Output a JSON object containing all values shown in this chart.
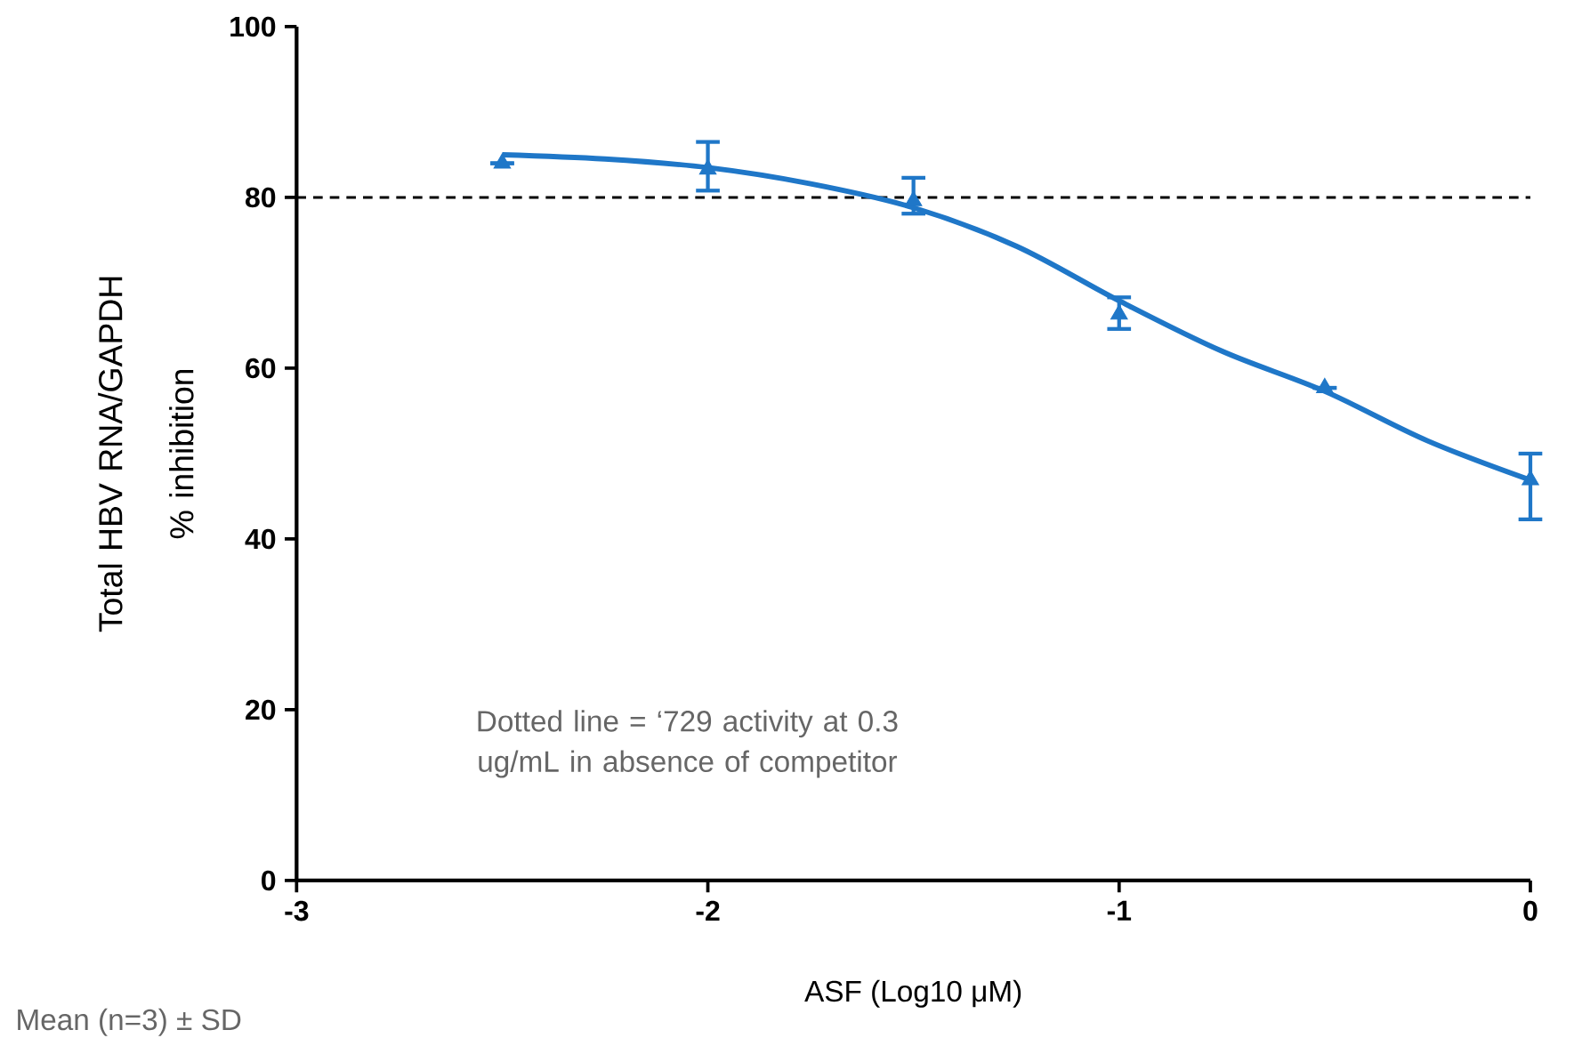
{
  "chart_data": {
    "type": "scatter",
    "xlabel": "ASF (Log10 μM)",
    "ylabel": "Total HBV RNA/GAPDH % inhibition",
    "marker": "triangle",
    "grid": false,
    "x": [
      -2.5,
      -2,
      -1.5,
      -1,
      -0.5,
      0
    ],
    "series": [
      {
        "color": "#1f77c8",
        "values": [
          84,
          83.3,
          79.6,
          66.3,
          57.7,
          46.9
        ],
        "errors": [
          null,
          [
            80.8,
            86.5
          ],
          [
            78.1,
            82.3
          ],
          [
            64.6,
            68.3
          ],
          null,
          [
            42.3,
            50
          ]
        ]
      },
      {
        "type": "line",
        "color": "#1f77c8",
        "marker": "none",
        "x": [
          -2.5,
          -2.25,
          -2,
          -1.75,
          -1.5,
          -1.25,
          -1,
          -0.75,
          -0.5,
          -0.25,
          0
        ],
        "values": [
          85,
          84.5,
          83.5,
          81.6,
          78.8,
          74.3,
          67.9,
          62,
          57.3,
          51.5,
          46.9
        ]
      }
    ],
    "xlim": [
      -3,
      0
    ],
    "xticks": [
      -3,
      -2,
      -1,
      0
    ],
    "ylim": [
      0,
      100
    ],
    "yticks": [
      0,
      20,
      40,
      60,
      80,
      100
    ],
    "ref_lines": [
      {
        "axis": "y",
        "value": 80,
        "line_style": "dashed",
        "color": "#000000"
      }
    ],
    "annotations": [
      "Dotted line = ‘729 activity at 0.3 ug/mL in absence of competitor",
      "Mean (n=3) ± SD"
    ]
  }
}
